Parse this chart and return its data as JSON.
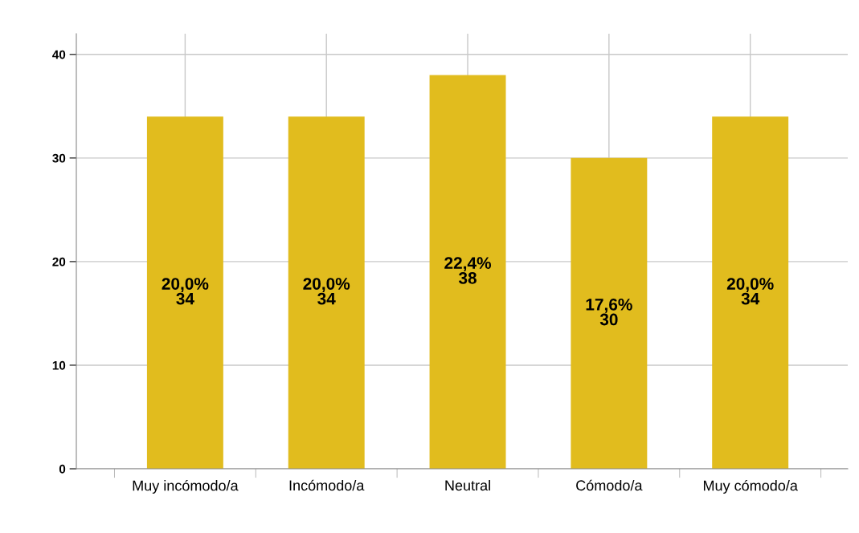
{
  "chart_data": {
    "type": "bar",
    "categories": [
      "Muy incómodo/a",
      "Incómodo/a",
      "Neutral",
      "Cómodo/a",
      "Muy cómodo/a"
    ],
    "values": [
      34,
      34,
      38,
      30,
      34
    ],
    "value_labels": [
      "20,0%\n34",
      "20,0%\n34",
      "22,4%\n38",
      "17,6%\n30",
      "20,0%\n34"
    ],
    "color": "#e1bc1e",
    "ylim": [
      0,
      42
    ],
    "yticks": [
      0,
      10,
      20,
      30,
      40
    ],
    "grid": true
  }
}
